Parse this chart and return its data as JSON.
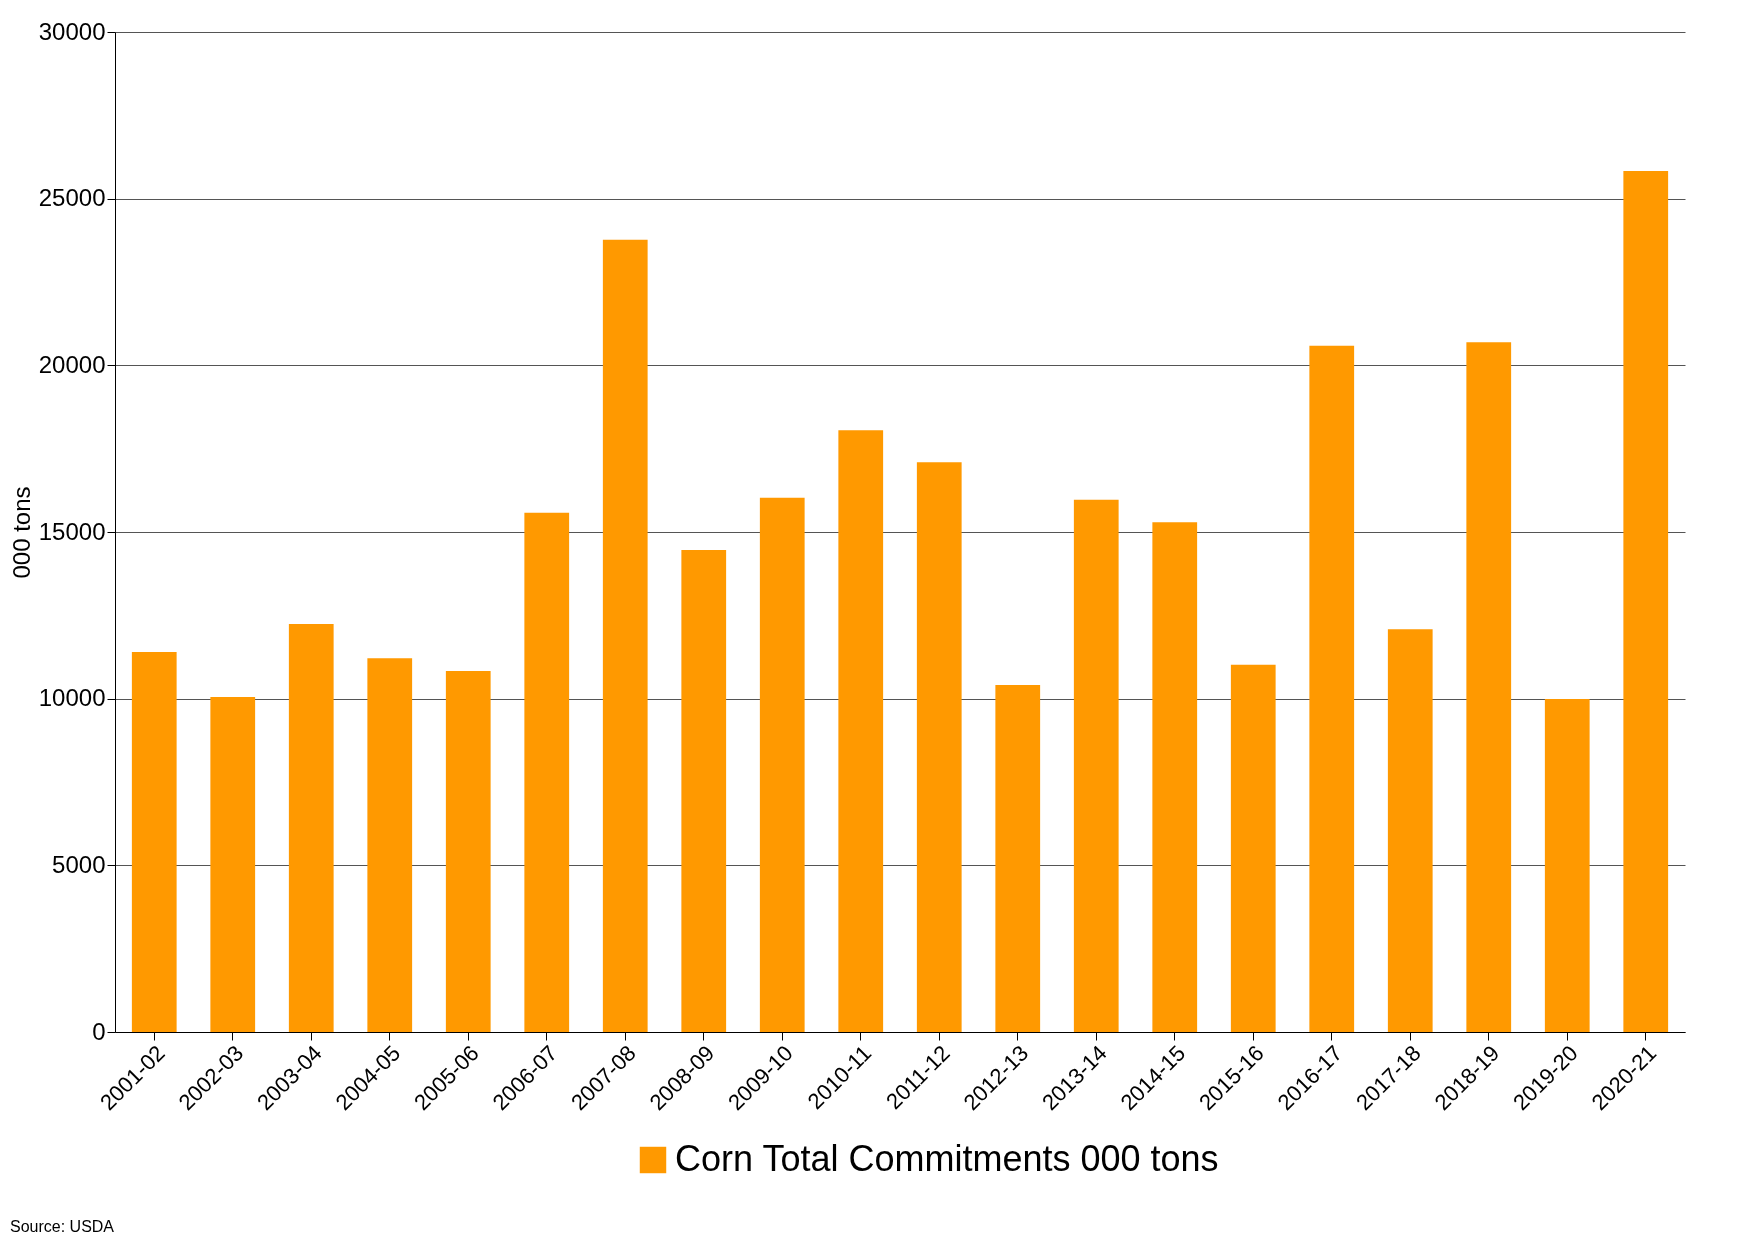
{
  "chart_data": {
    "type": "bar",
    "ylabel": "000 tons",
    "categories": [
      "2001-02",
      "2002-03",
      "2003-04",
      "2004-05",
      "2005-06",
      "2006-07",
      "2007-08",
      "2008-09",
      "2009-10",
      "2010-11",
      "2011-12",
      "2012-13",
      "2013-14",
      "2014-15",
      "2015-16",
      "2016-17",
      "2017-18",
      "2018-19",
      "2019-20",
      "2020-21"
    ],
    "series": [
      {
        "name": "Corn Total Commitments 000 tons",
        "color": "#ff9900",
        "values": [
          11400,
          10050,
          12240,
          11210,
          10830,
          15580,
          23770,
          14460,
          16030,
          18050,
          17090,
          10410,
          15970,
          15290,
          11020,
          20590,
          12080,
          20690,
          9990,
          25830
        ]
      }
    ],
    "ylim": [
      0,
      30000
    ],
    "yticks": [
      0,
      5000,
      10000,
      15000,
      20000,
      25000,
      30000
    ],
    "grid": "y",
    "legend": "bottom",
    "annotations": [
      "Source: USDA"
    ]
  }
}
